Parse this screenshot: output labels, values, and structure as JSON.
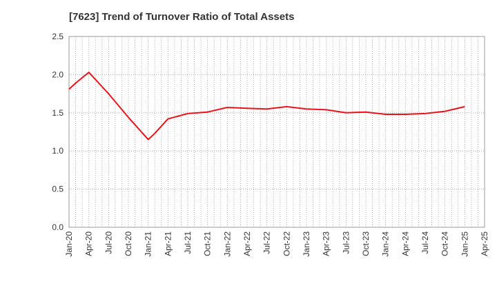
{
  "chart_data": {
    "type": "line",
    "title": "[7623]  Trend of Turnover Ratio of Total Assets",
    "xlabel": "",
    "ylabel": "",
    "ylim": [
      0,
      2.5
    ],
    "yticks": [
      "0.0",
      "0.5",
      "1.0",
      "1.5",
      "2.0",
      "2.5"
    ],
    "xtick_labels": [
      "Jan-20",
      "Apr-20",
      "Jul-20",
      "Oct-20",
      "Jan-21",
      "Apr-21",
      "Jul-21",
      "Oct-21",
      "Jan-22",
      "Apr-22",
      "Jul-22",
      "Oct-22",
      "Jan-23",
      "Apr-23",
      "Jul-23",
      "Oct-23",
      "Jan-24",
      "Apr-24",
      "Jul-24",
      "Oct-24",
      "Jan-25",
      "Apr-25"
    ],
    "grid": true,
    "series_color": "#e8131a",
    "series": [
      {
        "x": [
          "Jan-20",
          "Feb-20",
          "Apr-20",
          "Jul-20",
          "Oct-20",
          "Jan-21",
          "Feb-21",
          "Apr-21",
          "Jul-21",
          "Oct-21",
          "Jan-22",
          "Apr-22",
          "Jul-22",
          "Oct-22",
          "Jan-23",
          "Apr-23",
          "Jul-23",
          "Oct-23",
          "Jan-24",
          "Apr-24",
          "Jul-24",
          "Oct-24",
          "Jan-25"
        ],
        "values": [
          1.81,
          1.89,
          2.03,
          1.75,
          1.44,
          1.15,
          1.23,
          1.42,
          1.49,
          1.51,
          1.57,
          1.56,
          1.55,
          1.58,
          1.55,
          1.54,
          1.5,
          1.51,
          1.48,
          1.48,
          1.49,
          1.52,
          1.58
        ]
      }
    ]
  }
}
